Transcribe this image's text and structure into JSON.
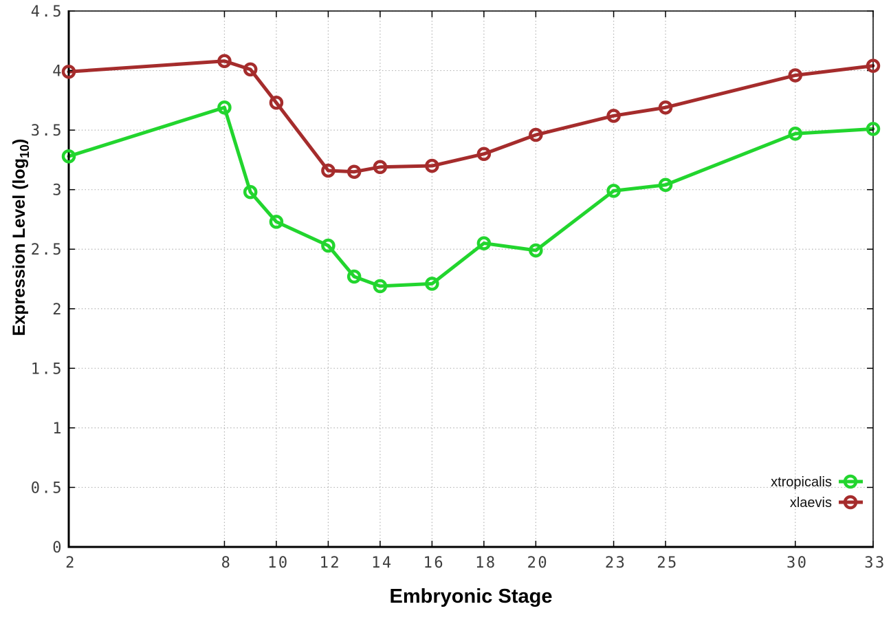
{
  "chart_data": {
    "type": "line",
    "title": "",
    "xlabel": "Embryonic Stage",
    "ylabel": "Expression Level (log10)",
    "ylabel_parts": {
      "prefix": "Expression Level (log",
      "subscript": "10",
      "suffix": ")"
    },
    "xlim": [
      2,
      33
    ],
    "ylim": [
      0,
      4.5
    ],
    "xticks": [
      2,
      8,
      10,
      12,
      14,
      16,
      18,
      20,
      23,
      25,
      30,
      33
    ],
    "yticks": [
      0,
      0.5,
      1,
      1.5,
      2,
      2.5,
      3,
      3.5,
      4,
      4.5
    ],
    "grid": true,
    "legend_position": "inside-bottom-right",
    "x": [
      2,
      8,
      9,
      10,
      12,
      13,
      14,
      16,
      18,
      20,
      23,
      25,
      30,
      33
    ],
    "series": [
      {
        "name": "xtropicalis",
        "color": "#22d52e",
        "values": [
          3.28,
          3.69,
          2.98,
          2.73,
          2.53,
          2.27,
          2.19,
          2.21,
          2.55,
          2.49,
          2.99,
          3.04,
          3.47,
          3.51
        ]
      },
      {
        "name": "xlaevis",
        "color": "#a52c2c",
        "values": [
          3.99,
          4.08,
          4.01,
          3.73,
          3.16,
          3.15,
          3.19,
          3.2,
          3.3,
          3.46,
          3.62,
          3.69,
          3.96,
          4.04
        ]
      }
    ],
    "colors": {
      "background": "#ffffff",
      "grid": "#b3b3b3",
      "axis": "#000000",
      "tick_labels": "#3d3d3d"
    }
  }
}
